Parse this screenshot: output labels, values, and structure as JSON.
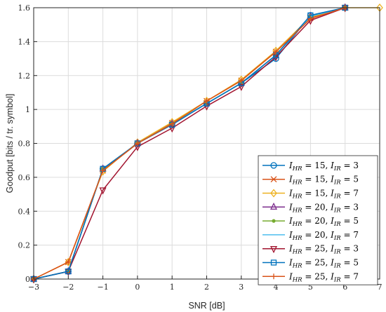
{
  "chart_data": {
    "type": "line",
    "xlabel": "SNR [dB]",
    "ylabel": "Goodput [bits / tr. symbol]",
    "xlim": [
      -3,
      7
    ],
    "ylim": [
      0,
      1.6
    ],
    "xticks": [
      "−3",
      "−2",
      "−1",
      "0",
      "1",
      "2",
      "3",
      "4",
      "5",
      "6",
      "7"
    ],
    "yticks": [
      "0",
      "0.2",
      "0.4",
      "0.6",
      "0.8",
      "1",
      "1.2",
      "1.4",
      "1.6"
    ],
    "grid": true,
    "legend_position": "bottom-right",
    "x": [
      -3,
      -2,
      -1,
      0,
      1,
      2,
      3,
      4,
      5,
      6,
      7
    ],
    "series": [
      {
        "name": "I_HR = 15, I_IR = 3",
        "hr": "15",
        "ir": "3",
        "color": "#0072BD",
        "marker": "circle",
        "values": [
          0,
          0.045,
          0.65,
          0.8,
          0.915,
          1.035,
          1.155,
          1.3,
          1.555,
          1.6,
          null
        ]
      },
      {
        "name": "I_HR = 15, I_IR = 5",
        "hr": "15",
        "ir": "5",
        "color": "#D95319",
        "marker": "x",
        "values": [
          0,
          0.1,
          0.64,
          0.8,
          0.92,
          1.05,
          1.17,
          1.34,
          1.54,
          1.6,
          null
        ]
      },
      {
        "name": "I_HR = 15, I_IR = 7",
        "hr": "15",
        "ir": "7",
        "color": "#EDB120",
        "marker": "diamond",
        "values": [
          0,
          0.1,
          0.635,
          0.805,
          0.925,
          1.05,
          1.175,
          1.345,
          1.545,
          1.6,
          1.6
        ]
      },
      {
        "name": "I_HR = 20, I_IR = 3",
        "hr": "20",
        "ir": "3",
        "color": "#7E2F8E",
        "marker": "triangle",
        "values": [
          0,
          0.045,
          0.65,
          0.8,
          0.915,
          1.035,
          1.155,
          1.32,
          1.55,
          1.6,
          null
        ]
      },
      {
        "name": "I_HR = 20, I_IR = 5",
        "hr": "20",
        "ir": "5",
        "color": "#77AC30",
        "marker": "dot",
        "values": [
          0,
          0.045,
          0.65,
          0.8,
          0.915,
          1.035,
          1.155,
          1.32,
          1.55,
          1.6,
          null
        ]
      },
      {
        "name": "I_HR = 20, I_IR = 7",
        "hr": "20",
        "ir": "7",
        "color": "#4DBEEE",
        "marker": "none",
        "values": [
          0,
          0.045,
          0.65,
          0.8,
          0.915,
          1.035,
          1.155,
          1.32,
          1.55,
          1.6,
          null
        ]
      },
      {
        "name": "I_HR = 25, I_IR = 3",
        "hr": "25",
        "ir": "3",
        "color": "#A2142F",
        "marker": "triangle-down",
        "values": [
          0,
          0.045,
          0.525,
          0.78,
          0.89,
          1.02,
          1.135,
          1.31,
          1.525,
          1.6,
          null
        ]
      },
      {
        "name": "I_HR = 25, I_IR = 5",
        "hr": "25",
        "ir": "5",
        "color": "#0072BD",
        "marker": "square",
        "values": [
          0,
          0.045,
          0.65,
          0.8,
          0.91,
          1.035,
          1.155,
          1.32,
          1.555,
          1.6,
          null
        ]
      },
      {
        "name": "I_HR = 25, I_IR = 7",
        "hr": "25",
        "ir": "7",
        "color": "#D95319",
        "marker": "plus",
        "values": [
          0,
          0.1,
          0.64,
          0.8,
          0.915,
          1.05,
          1.17,
          1.34,
          1.535,
          1.6,
          null
        ]
      }
    ]
  }
}
